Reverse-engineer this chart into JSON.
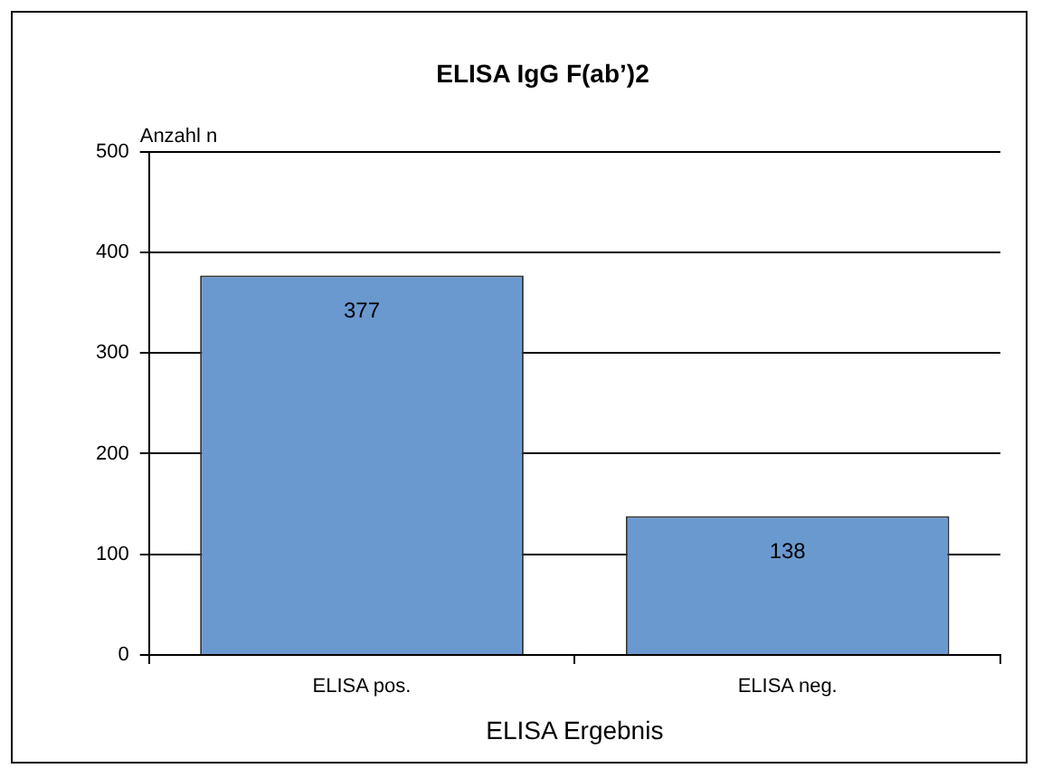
{
  "chart_data": {
    "type": "bar",
    "title": "ELISA IgG F(ab’)2",
    "xlabel": "ELISA Ergebnis",
    "ylabel": "Anzahl n",
    "categories": [
      "ELISA pos.",
      "ELISA neg."
    ],
    "values": [
      377,
      138
    ],
    "color": "#6a99d0",
    "ylim": [
      0,
      500
    ],
    "yticks": [
      0,
      100,
      200,
      300,
      400,
      500
    ],
    "grid": "y",
    "data_labels": true,
    "legend": false
  }
}
